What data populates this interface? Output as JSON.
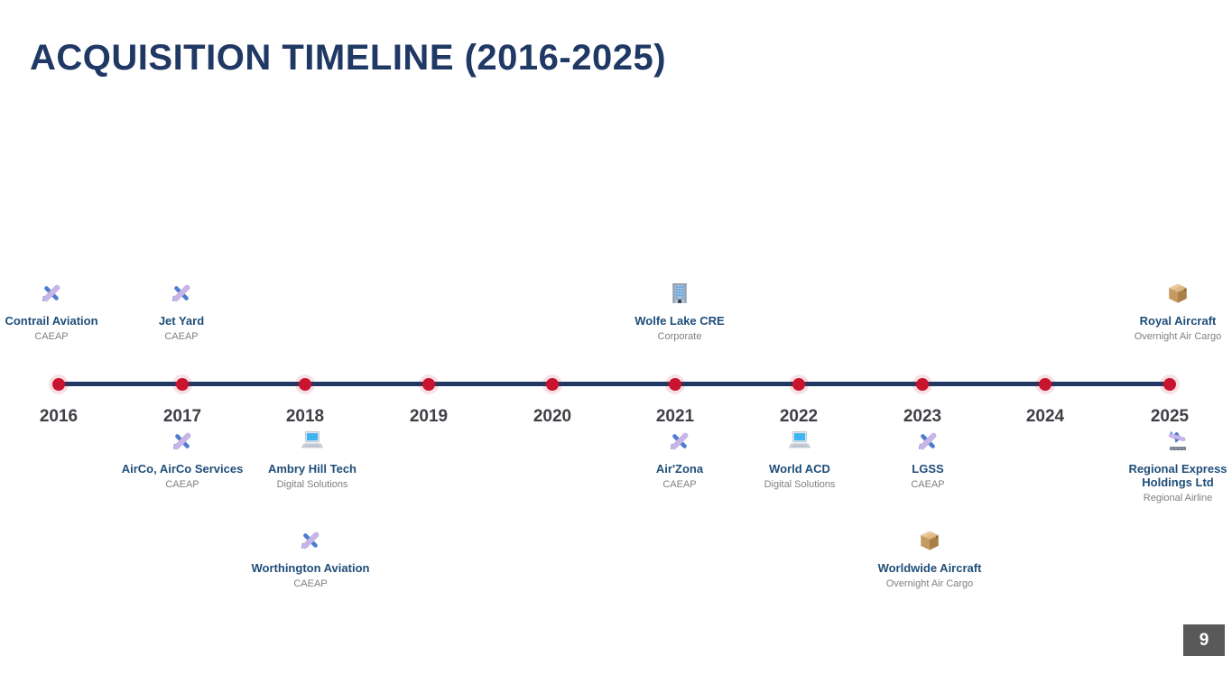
{
  "slide": {
    "title": "ACQUISITION TIMELINE (2016-2025)",
    "page_number": "9"
  },
  "colors": {
    "title": "#1F3864",
    "timeline_line": "#1F3864",
    "dot": "#C9142F",
    "company_name": "#1F4E79",
    "category_text": "#7F7F7F",
    "year_label": "#3F3F46",
    "page_badge_bg": "#595959",
    "page_badge_text": "#FFFFFF"
  },
  "timeline": {
    "years": [
      "2016",
      "2017",
      "2018",
      "2019",
      "2020",
      "2021",
      "2022",
      "2023",
      "2024",
      "2025"
    ],
    "entries": [
      {
        "year": "2016",
        "position": "above",
        "icon": "airplane-icon",
        "name": "Contrail Aviation",
        "category": "CAEAP"
      },
      {
        "year": "2017",
        "position": "above",
        "icon": "airplane-icon",
        "name": "Jet Yard",
        "category": "CAEAP"
      },
      {
        "year": "2021",
        "position": "above",
        "icon": "office-building-icon",
        "name": "Wolfe Lake CRE",
        "category": "Corporate"
      },
      {
        "year": "2025",
        "position": "above",
        "icon": "package-icon",
        "name": "Royal Aircraft",
        "category": "Overnight Air Cargo"
      },
      {
        "year": "2017",
        "position": "below",
        "icon": "airplane-icon",
        "name": "AirCo, AirCo Services",
        "category": "CAEAP"
      },
      {
        "year": "2018",
        "position": "below",
        "icon": "laptop-icon",
        "name": "Ambry Hill Tech",
        "category": "Digital Solutions"
      },
      {
        "year": "2021",
        "position": "below",
        "icon": "airplane-icon",
        "name": "Air'Zona",
        "category": "CAEAP"
      },
      {
        "year": "2022",
        "position": "below",
        "icon": "laptop-icon",
        "name": "World ACD",
        "category": "Digital Solutions"
      },
      {
        "year": "2023",
        "position": "below",
        "icon": "airplane-icon",
        "name": "LGSS",
        "category": "CAEAP"
      },
      {
        "year": "2025",
        "position": "below",
        "icon": "airplane-landing-icon",
        "name": "Regional Express Holdings Ltd",
        "category": "Regional Airline"
      },
      {
        "year": "2018",
        "position": "below-second-row",
        "icon": "airplane-icon",
        "name": "Worthington Aviation",
        "category": "CAEAP"
      },
      {
        "year": "2023",
        "position": "below-second-row",
        "icon": "package-icon",
        "name": "Worldwide Aircraft",
        "category": "Overnight Air Cargo"
      }
    ]
  }
}
